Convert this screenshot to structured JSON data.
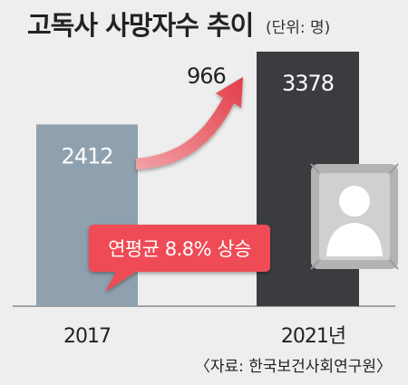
{
  "title": "고독사 사망자수 추이",
  "unit": "(단위: 명)",
  "source": "〈자료: 한국보건사회연구원〉",
  "chart_data": {
    "type": "bar",
    "categories": [
      "2017",
      "2021년"
    ],
    "values": [
      2412,
      3378
    ],
    "ylim": [
      0,
      3378
    ],
    "grid": false,
    "increase": "966",
    "callout": "연평균 8.8% 상승",
    "colors": {
      "bar_2017": "#8fa1ae",
      "bar_2021": "#3b3c3f",
      "arrow": "#e8555e",
      "callout": "#ee4b56",
      "background": "#eeeeee"
    }
  },
  "icons": {
    "person": "person-silhouette-icon"
  }
}
